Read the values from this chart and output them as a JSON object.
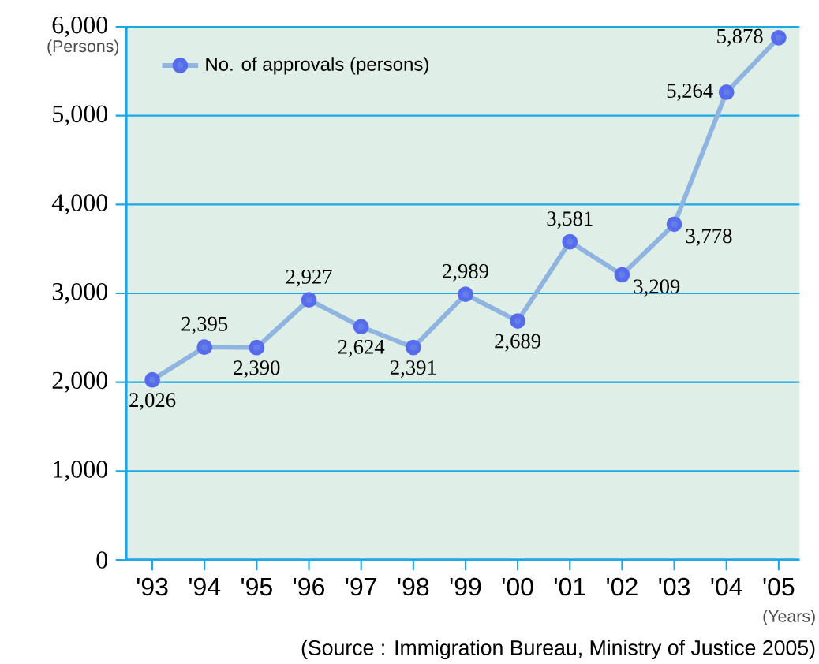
{
  "chart_data": {
    "type": "line",
    "ylabel": "(Persons)",
    "xlabel": "(Years)",
    "categories": [
      "'93",
      "'94",
      "'95",
      "'96",
      "'97",
      "'98",
      "'99",
      "'00",
      "'01",
      "'02",
      "'03",
      "'04",
      "'05"
    ],
    "series": [
      {
        "name": "No. of approvals (persons)",
        "color": "#8fb4e0",
        "values": [
          2026,
          2395,
          2390,
          2927,
          2624,
          2391,
          2989,
          2689,
          3581,
          3209,
          3778,
          5264,
          5878
        ],
        "value_labels": [
          "2,026",
          "2,395",
          "2,390",
          "2,927",
          "2,624",
          "2,391",
          "2,989",
          "2,689",
          "3,581",
          "3,209",
          "3,778",
          "5,264",
          "5,878"
        ]
      }
    ],
    "ylim": [
      0,
      6000
    ],
    "yticks": [
      {
        "value": 0,
        "label": "0"
      },
      {
        "value": 1000,
        "label": "1,000"
      },
      {
        "value": 2000,
        "label": "2,000"
      },
      {
        "value": 3000,
        "label": "3,000"
      },
      {
        "value": 4000,
        "label": "4,000"
      },
      {
        "value": 5000,
        "label": "5,000"
      },
      {
        "value": 6000,
        "label": "6,000"
      }
    ],
    "grid": "y",
    "legend": "top left",
    "marker": "circle",
    "line_style": "solid",
    "annotations": [
      "(Source : Immigration Bureau, Ministry of Justice 2005)"
    ]
  }
}
